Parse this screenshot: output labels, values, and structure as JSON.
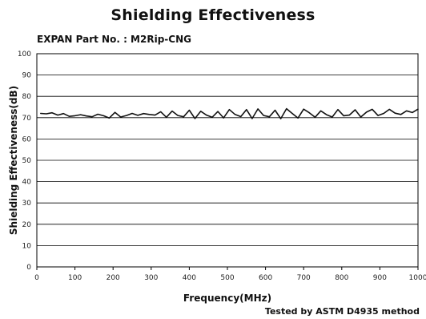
{
  "title": "Shielding Effectiveness",
  "part_line": "EXPAN Part No. : M2Rip-CNG",
  "footer_note": "Tested by ASTM D4935 method",
  "chart_data": {
    "type": "line",
    "title": "Shielding Effectiveness",
    "xlabel": "Frequency(MHz)",
    "ylabel": "Shielding Effectiveness(dB)",
    "xlim": [
      0,
      1000
    ],
    "ylim": [
      0,
      100
    ],
    "x_ticks": [
      0,
      100,
      200,
      300,
      400,
      500,
      600,
      700,
      800,
      900,
      1000
    ],
    "y_ticks": [
      0,
      10,
      20,
      30,
      40,
      50,
      60,
      70,
      80,
      90,
      100
    ],
    "grid": "horizontal",
    "legend": "none",
    "series": [
      {
        "color": "#111111",
        "x": [
          10,
          25,
          40,
          55,
          70,
          85,
          100,
          115,
          130,
          145,
          160,
          175,
          190,
          205,
          220,
          235,
          250,
          265,
          280,
          295,
          310,
          325,
          340,
          355,
          370,
          385,
          400,
          415,
          430,
          445,
          460,
          475,
          490,
          505,
          520,
          535,
          550,
          565,
          580,
          595,
          610,
          625,
          640,
          655,
          670,
          685,
          700,
          715,
          730,
          745,
          760,
          775,
          790,
          805,
          820,
          835,
          850,
          865,
          880,
          895,
          910,
          925,
          940,
          955,
          970,
          985,
          1000
        ],
        "values": [
          72.0,
          71.8,
          72.3,
          71.2,
          71.9,
          70.6,
          70.9,
          71.4,
          70.8,
          70.4,
          71.6,
          70.9,
          69.8,
          72.5,
          70.3,
          71.0,
          72.0,
          71.1,
          71.9,
          71.5,
          71.2,
          72.8,
          70.2,
          73.1,
          71.0,
          70.4,
          73.5,
          69.6,
          73.0,
          71.2,
          70.2,
          72.9,
          69.9,
          73.8,
          71.5,
          70.5,
          73.8,
          69.6,
          74.1,
          71.0,
          70.4,
          73.5,
          69.5,
          74.2,
          72.0,
          69.8,
          74.0,
          72.3,
          70.2,
          73.2,
          71.4,
          70.3,
          73.8,
          70.9,
          71.2,
          73.7,
          70.3,
          72.6,
          73.9,
          71.0,
          72.0,
          73.9,
          72.1,
          71.5,
          73.2,
          72.4,
          74.0
        ]
      }
    ]
  }
}
